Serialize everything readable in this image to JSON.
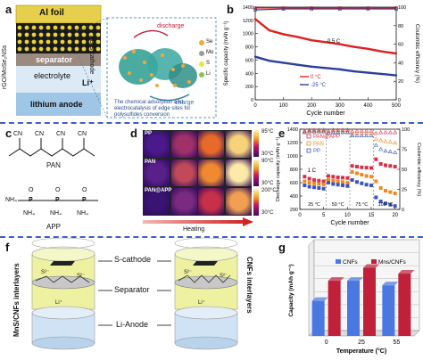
{
  "panel_a": {
    "label": "a",
    "al_foil": "Al foil",
    "ab_cathode": "AB-S cathode",
    "separator": "separator",
    "side_label": "rGO/MoSe₂NSs",
    "electrolyte": "electrolyte",
    "li_ion": "Li⁺",
    "anode": "lithium anode",
    "discharge": "discharge",
    "charge": "charge",
    "caption": "The chemical adsorption and electrocatalysis of edge sites for polysulfides conversion",
    "legend": [
      "Se",
      "Mo",
      "S",
      "Li"
    ]
  },
  "panel_b": {
    "label": "b",
    "rate": "0.5 C",
    "series": [
      "0 °C",
      "-25 °C"
    ],
    "xlabel": "Cycle number",
    "ylabel": "Specific capacity (mAh g⁻¹)",
    "ylabel2": "Coulombic efficiency (%)",
    "xticks": [
      "0",
      "100",
      "200",
      "300",
      "400",
      "500"
    ],
    "yticks": [
      "0",
      "200",
      "400",
      "600",
      "800",
      "1000",
      "1200",
      "1400"
    ],
    "y2ticks": [
      "0",
      "20",
      "40",
      "60",
      "80",
      "100"
    ]
  },
  "panel_c": {
    "label": "c",
    "cn": "CN",
    "pan": "PAN",
    "app": "APP",
    "nh4": "NH₄",
    "o": "O",
    "p": "P"
  },
  "panel_d": {
    "label": "d",
    "rows": [
      "PP",
      "PAN",
      "PAN@APP"
    ],
    "temps": [
      "85°C",
      "30°C",
      "90°C",
      "30°C",
      "200°C",
      "30°C"
    ],
    "heating": "Heating"
  },
  "panel_e": {
    "label": "e",
    "legend": [
      "PAN@APP",
      "PAN",
      "PP"
    ],
    "rate": "1 C",
    "segments": [
      "25 °C",
      "50 °C",
      "75 °C",
      "100 °C"
    ],
    "xlabel": "Cycle number",
    "ylabel": "Discharge capacity (mAh g⁻¹)",
    "ylabel2": "Coulombic efficiency (%)",
    "xticks": [
      "0",
      "5",
      "10",
      "15",
      "20"
    ],
    "yticks": [
      "200",
      "400",
      "600",
      "800",
      "1000",
      "1200",
      "1400"
    ],
    "y2ticks": [
      "0",
      "25",
      "50",
      "75",
      "100"
    ]
  },
  "panel_f": {
    "label": "f",
    "left_side": "MnS/CNFs interlayers",
    "right_side": "CNFs interlayers",
    "s_cathode": "S-cathode",
    "separator": "Separator",
    "li_anode": "Li-Anode",
    "s_ion": "S²⁻",
    "li_ion": "Li⁺"
  },
  "panel_g": {
    "label": "g",
    "legend": [
      "CNFs",
      "Mns/CNFs"
    ],
    "xlabel": "Temperature (°C)",
    "ylabel": "Capacity (mAh g⁻¹)"
  },
  "chart_data": [
    {
      "type": "line",
      "panel": "b",
      "x_range": [
        0,
        500
      ],
      "y_range": [
        0,
        1400
      ],
      "y2_range": [
        0,
        100
      ],
      "series": [
        {
          "name": "0 °C",
          "color": "#e02020",
          "x": [
            0,
            50,
            100,
            150,
            200,
            250,
            300,
            350,
            400,
            450,
            500
          ],
          "y": [
            1220,
            1050,
            990,
            950,
            900,
            870,
            840,
            800,
            770,
            730,
            700
          ]
        },
        {
          "name": "-25 °C",
          "color": "#2a3ea0",
          "x": [
            0,
            50,
            100,
            150,
            200,
            250,
            300,
            350,
            400,
            450,
            500
          ],
          "y": [
            650,
            590,
            560,
            530,
            500,
            480,
            460,
            430,
            410,
            390,
            370
          ]
        },
        {
          "name": "CE 0 °C",
          "axis": "right",
          "x": [
            0,
            100,
            200,
            300,
            400,
            500
          ],
          "y": [
            99,
            99,
            99,
            99,
            99,
            99
          ]
        },
        {
          "name": "CE -25 °C",
          "axis": "right",
          "x": [
            0,
            100,
            200,
            300,
            400,
            500
          ],
          "y": [
            97,
            98,
            98,
            98,
            98,
            98
          ]
        }
      ],
      "xlabel": "Cycle number",
      "ylabel": "Specific capacity (mAh g⁻¹)"
    },
    {
      "type": "scatter",
      "panel": "e",
      "x_range": [
        0,
        21
      ],
      "y_range": [
        200,
        1400
      ],
      "y2_range": [
        0,
        100
      ],
      "series": [
        {
          "name": "PAN@APP",
          "color": "#d9304a",
          "x": [
            1,
            2,
            3,
            4,
            5,
            6,
            7,
            8,
            9,
            10,
            11,
            12,
            13,
            14,
            15,
            16,
            17,
            18,
            19,
            20
          ],
          "y": [
            690,
            660,
            640,
            630,
            620,
            700,
            690,
            680,
            675,
            670,
            850,
            840,
            830,
            825,
            820,
            950,
            880,
            860,
            850,
            840
          ]
        },
        {
          "name": "PAN",
          "color": "#f08a20",
          "x": [
            1,
            2,
            3,
            4,
            5,
            6,
            7,
            8,
            9,
            10,
            11,
            12,
            13,
            14,
            15,
            16,
            17,
            18,
            19,
            20
          ],
          "y": [
            620,
            600,
            590,
            580,
            575,
            640,
            630,
            620,
            610,
            600,
            760,
            740,
            720,
            700,
            690,
            620,
            520,
            480,
            460,
            440
          ]
        },
        {
          "name": "PP",
          "color": "#3a56c0",
          "x": [
            1,
            2,
            3,
            4,
            5,
            6,
            7,
            8,
            9,
            10,
            11,
            12,
            13,
            14,
            15,
            16,
            17,
            18,
            19,
            20
          ],
          "y": [
            560,
            540,
            530,
            520,
            510,
            600,
            580,
            570,
            560,
            550,
            640,
            610,
            590,
            570,
            560,
            380,
            320,
            290,
            270,
            250
          ]
        },
        {
          "name": "CE PAN@APP",
          "axis": "right",
          "color": "#d9304a",
          "x": [
            1,
            2,
            3,
            4,
            5,
            6,
            7,
            8,
            9,
            10,
            11,
            12,
            13,
            14,
            15,
            16,
            17,
            18,
            19,
            20
          ],
          "y": [
            98,
            99,
            99,
            99,
            99,
            98,
            99,
            99,
            99,
            99,
            97,
            98,
            98,
            98,
            98,
            95,
            96,
            96,
            96,
            96
          ]
        },
        {
          "name": "CE PAN",
          "axis": "right",
          "color": "#f08a20",
          "x": [
            1,
            2,
            3,
            4,
            5,
            6,
            7,
            8,
            9,
            10,
            11,
            12,
            13,
            14,
            15,
            16,
            17,
            18,
            19,
            20
          ],
          "y": [
            97,
            98,
            98,
            98,
            98,
            96,
            97,
            97,
            97,
            97,
            94,
            95,
            95,
            95,
            95,
            88,
            86,
            85,
            84,
            83
          ]
        },
        {
          "name": "CE PP",
          "axis": "right",
          "color": "#3a56c0",
          "x": [
            1,
            2,
            3,
            4,
            5,
            6,
            7,
            8,
            9,
            10,
            11,
            12,
            13,
            14,
            15,
            16,
            17,
            18,
            19,
            20
          ],
          "y": [
            96,
            97,
            97,
            97,
            97,
            95,
            96,
            96,
            96,
            96,
            92,
            92,
            92,
            92,
            92,
            80,
            75,
            73,
            72,
            71
          ]
        }
      ],
      "xlabel": "Cycle number",
      "ylabel": "Discharge capacity (mAh g⁻¹)"
    },
    {
      "type": "bar",
      "panel": "g",
      "categories": [
        "0",
        "25",
        "55"
      ],
      "y_range": [
        0,
        1400
      ],
      "series": [
        {
          "name": "CNFs",
          "color": "#4a78e0",
          "values": [
            540,
            850,
            780
          ]
        },
        {
          "name": "Mns/CNFs",
          "color": "#c0203a",
          "values": [
            850,
            1050,
            960
          ]
        }
      ],
      "xlabel": "Temperature (°C)",
      "ylabel": "Capacity (mAh g⁻¹)"
    }
  ]
}
